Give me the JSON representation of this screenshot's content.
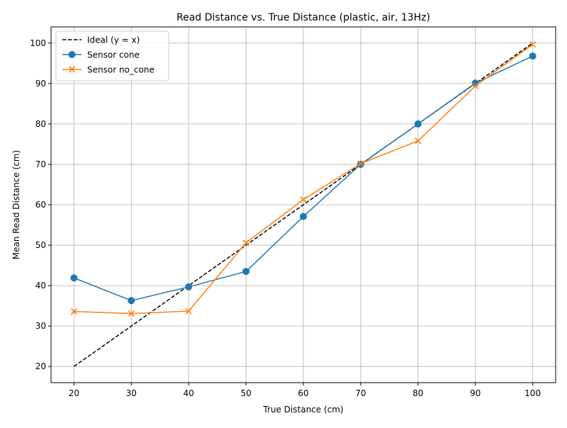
{
  "chart_data": {
    "type": "line",
    "title": "Read Distance vs. True Distance (plastic, air, 13Hz)",
    "xlabel": "True Distance (cm)",
    "ylabel": "Mean Read Distance (cm)",
    "x": [
      20,
      30,
      40,
      50,
      60,
      70,
      80,
      90,
      100
    ],
    "xlim": [
      16,
      104
    ],
    "ylim": [
      16,
      104
    ],
    "xticks": [
      20,
      30,
      40,
      50,
      60,
      70,
      80,
      90,
      100
    ],
    "yticks": [
      20,
      30,
      40,
      50,
      60,
      70,
      80,
      90,
      100
    ],
    "grid": true,
    "legend_position": "top-left",
    "series": [
      {
        "name": "Ideal (y = x)",
        "values": [
          20,
          30,
          40,
          50,
          60,
          70,
          80,
          90,
          100
        ],
        "color": "#000000",
        "marker": "none",
        "dashed": true
      },
      {
        "name": "Sensor cone",
        "values": [
          41.9,
          36.3,
          39.7,
          43.5,
          57.1,
          70.0,
          80.0,
          90.1,
          96.8
        ],
        "color": "#1f77b4",
        "marker": "circle",
        "dashed": false
      },
      {
        "name": "Sensor no_cone",
        "values": [
          33.6,
          33.1,
          33.7,
          50.6,
          61.3,
          70.2,
          75.8,
          89.4,
          99.7
        ],
        "color": "#ff7f0e",
        "marker": "x",
        "dashed": false
      }
    ]
  }
}
